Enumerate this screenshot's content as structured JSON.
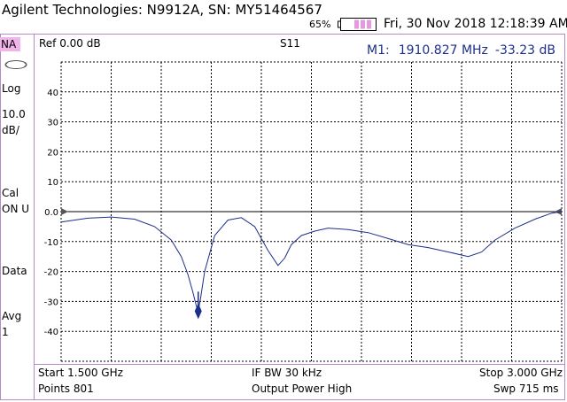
{
  "header": {
    "title": "Agilent Technologies: N9912A, SN: MY51464567",
    "battery_percent": "65%",
    "datetime": "Fri, 30 Nov 2018 12:18:39 AM"
  },
  "left_panel": {
    "mode": "NA",
    "format": "Log",
    "scale_value": "10.0",
    "scale_unit": "dB/",
    "cal_label": "Cal",
    "cal_status": "ON U",
    "data_label": "Data",
    "avg_label": "Avg",
    "avg_value": "1",
    "sweep_icon": "continuous-sweep-icon"
  },
  "plot_header": {
    "ref": "Ref 0.00 dB",
    "measurement": "S11",
    "marker_label": "M1:",
    "marker_freq": "1910.827 MHz",
    "marker_value": "-33.23 dB"
  },
  "footer": {
    "start": "Start 1.500 GHz",
    "points": "Points 801",
    "ifbw": "IF BW 30 kHz",
    "power": "Output Power High",
    "stop": "Stop 3.000 GHz",
    "sweep": "Swp 715 ms"
  },
  "colors": {
    "trace": "#1c2f8a",
    "grid": "#000000",
    "ref_line": "#000000",
    "marker": "#1c2f8a",
    "border": "#b48ac8",
    "badge": "#f0b4e8"
  },
  "chart_data": {
    "type": "line",
    "x_unit": "GHz",
    "xlim": [
      1.5,
      3.0
    ],
    "ylim": [
      -50,
      50
    ],
    "y_ticks": [
      40,
      30,
      20,
      10,
      0.0,
      -10,
      -20,
      -30,
      -40
    ],
    "y_tick_labels": [
      "40",
      "30",
      "20",
      "10",
      "0.0",
      "-10",
      "-20",
      "-30",
      "-40"
    ],
    "x_divisions": 10,
    "y_divisions": 10,
    "grid": "dotted",
    "reference_level": 0,
    "series": [
      {
        "x": [
          1.5,
          1.58,
          1.65,
          1.72,
          1.78,
          1.83,
          1.86,
          1.88,
          1.895,
          1.905,
          1.911,
          1.918,
          1.93,
          1.96,
          2.0,
          2.04,
          2.08,
          2.12,
          2.15,
          2.17,
          2.19,
          2.22,
          2.26,
          2.3,
          2.36,
          2.42,
          2.48,
          2.54,
          2.6,
          2.66,
          2.72,
          2.76,
          2.8,
          2.86,
          2.92,
          2.97,
          3.0
        ],
        "y": [
          -3.5,
          -2.2,
          -1.8,
          -2.5,
          -5.0,
          -9.5,
          -15.0,
          -21.0,
          -27.0,
          -31.5,
          -33.2,
          -29.0,
          -20.0,
          -8.0,
          -2.8,
          -2.0,
          -5.0,
          -13.0,
          -18.0,
          -15.5,
          -11.0,
          -8.0,
          -6.5,
          -5.5,
          -6.0,
          -7.0,
          -9.0,
          -11.0,
          -12.0,
          -13.5,
          -15.0,
          -13.5,
          -9.5,
          -5.5,
          -2.5,
          -0.5,
          0.0
        ]
      }
    ],
    "markers": [
      {
        "label": "M1",
        "x": 1.910827,
        "y": -33.23
      }
    ]
  }
}
